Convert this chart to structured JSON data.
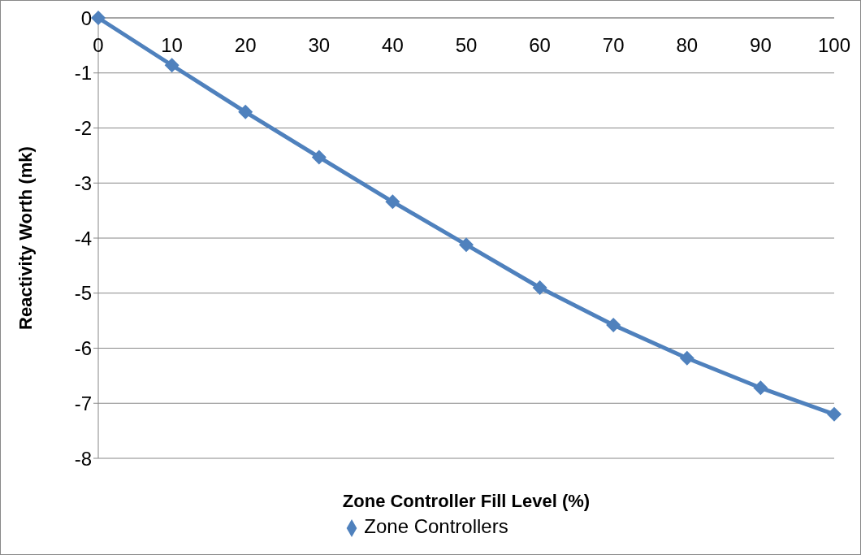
{
  "chart_data": {
    "type": "line",
    "xlabel": "Zone Controller Fill Level (%)",
    "ylabel": "Reactivity Worth (mk)",
    "x": [
      0,
      10,
      20,
      30,
      40,
      50,
      60,
      70,
      80,
      90,
      100
    ],
    "series": [
      {
        "name": "Zone Controllers",
        "color": "#4f81bd",
        "values": [
          0,
          -0.86,
          -1.71,
          -2.53,
          -3.34,
          -4.12,
          -4.9,
          -5.58,
          -6.18,
          -6.72,
          -7.2
        ]
      }
    ],
    "xlim": [
      0,
      100
    ],
    "xticks": [
      0,
      10,
      20,
      30,
      40,
      50,
      60,
      70,
      80,
      90,
      100
    ],
    "ylim": [
      -8,
      0
    ],
    "yticks": [
      -8,
      -7,
      -6,
      -5,
      -4,
      -3,
      -2,
      -1,
      0
    ],
    "grid": "y",
    "legend": "bottom",
    "marker": "diamond",
    "line_style": "solid"
  }
}
